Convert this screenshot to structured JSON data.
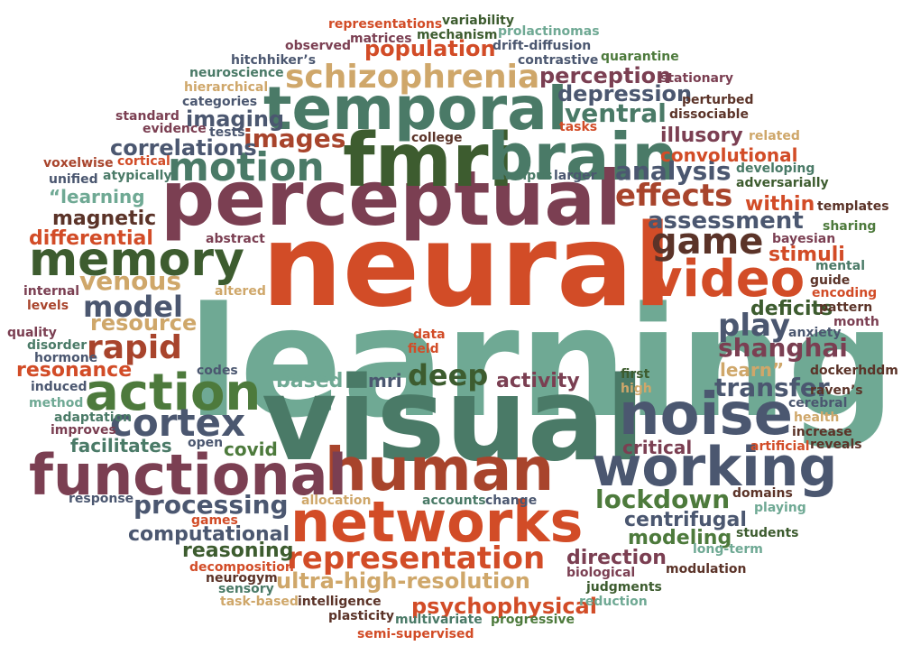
{
  "colors": {
    "teal_light": "#6fa994",
    "teal_dark": "#4a7a67",
    "orange": "#d24c27",
    "plum": "#7b3f52",
    "slate": "#4b5770",
    "olive": "#3d5c2f",
    "gold": "#cfa76a",
    "brown": "#5b3328",
    "green": "#4d7a3c",
    "rust": "#a8442c"
  },
  "words": [
    {
      "text": "learning",
      "color": "teal_light"
    },
    {
      "text": "neural",
      "color": "orange"
    },
    {
      "text": "visual",
      "color": "teal_dark"
    },
    {
      "text": "perceptual",
      "color": "plum"
    },
    {
      "text": "fmri",
      "color": "olive"
    },
    {
      "text": "brain",
      "color": "teal_dark"
    },
    {
      "text": "temporal",
      "color": "teal_dark"
    },
    {
      "text": "human",
      "color": "rust"
    },
    {
      "text": "networks",
      "color": "orange"
    },
    {
      "text": "functional",
      "color": "plum"
    },
    {
      "text": "noise",
      "color": "slate"
    },
    {
      "text": "memory",
      "color": "olive"
    },
    {
      "text": "action",
      "color": "green"
    },
    {
      "text": "working",
      "color": "slate"
    },
    {
      "text": "video",
      "color": "orange"
    },
    {
      "text": "motion",
      "color": "teal_dark"
    },
    {
      "text": "schizophrenia",
      "color": "gold"
    },
    {
      "text": "game",
      "color": "brown"
    },
    {
      "text": "cortex",
      "color": "slate"
    },
    {
      "text": "representation",
      "color": "orange"
    },
    {
      "text": "deep",
      "color": "olive"
    },
    {
      "text": "effects",
      "color": "rust"
    },
    {
      "text": "analysis",
      "color": "slate"
    },
    {
      "text": "rapid",
      "color": "rust"
    },
    {
      "text": "model",
      "color": "slate"
    },
    {
      "text": "ventral",
      "color": "teal_dark"
    },
    {
      "text": "play",
      "color": "slate"
    },
    {
      "text": "processing",
      "color": "slate"
    },
    {
      "text": "ultra-high-resolution",
      "color": "gold"
    },
    {
      "text": "images",
      "color": "rust"
    },
    {
      "text": "assessment",
      "color": "slate"
    },
    {
      "text": "shanghai",
      "color": "plum"
    },
    {
      "text": "transfer",
      "color": "slate"
    },
    {
      "text": "lockdown",
      "color": "green"
    },
    {
      "text": "population",
      "color": "orange"
    },
    {
      "text": "venous",
      "color": "gold"
    },
    {
      "text": "depression",
      "color": "slate"
    },
    {
      "text": "perception",
      "color": "plum"
    },
    {
      "text": "imaging",
      "color": "slate"
    },
    {
      "text": "resource",
      "color": "gold"
    },
    {
      "text": "correlations",
      "color": "slate"
    },
    {
      "text": "psychophysical",
      "color": "orange"
    },
    {
      "text": "computational",
      "color": "slate"
    },
    {
      "text": "reasoning",
      "color": "olive"
    },
    {
      "text": "direction",
      "color": "plum"
    },
    {
      "text": "modeling",
      "color": "green"
    },
    {
      "text": "centrifugal",
      "color": "slate"
    },
    {
      "text": "magnetic",
      "color": "brown"
    },
    {
      "text": "differential",
      "color": "orange"
    },
    {
      "text": "resonance",
      "color": "orange"
    },
    {
      "text": "facilitates",
      "color": "teal_dark"
    },
    {
      "text": "convolutional",
      "color": "orange"
    },
    {
      "text": "illusory",
      "color": "plum"
    },
    {
      "text": "deficits",
      "color": "olive"
    },
    {
      "text": "within",
      "color": "orange"
    },
    {
      "text": "stimuli",
      "color": "orange"
    },
    {
      "text": "based",
      "color": "teal_light"
    },
    {
      "text": "activity",
      "color": "plum"
    },
    {
      "text": "mri",
      "color": "slate"
    },
    {
      "text": "covid",
      "color": "green"
    },
    {
      "text": "critical",
      "color": "plum"
    },
    {
      "text": "“learning",
      "color": "teal_light"
    },
    {
      "text": "learn”",
      "color": "gold"
    },
    {
      "text": "representations",
      "color": "orange"
    },
    {
      "text": "variability",
      "color": "olive"
    },
    {
      "text": "prolactinomas",
      "color": "teal_light"
    },
    {
      "text": "matrices",
      "color": "plum"
    },
    {
      "text": "mechanism",
      "color": "olive"
    },
    {
      "text": "observed",
      "color": "plum"
    },
    {
      "text": "drift-diffusion",
      "color": "slate"
    },
    {
      "text": "hitchhiker’s",
      "color": "slate"
    },
    {
      "text": "contrastive",
      "color": "slate"
    },
    {
      "text": "quarantine",
      "color": "green"
    },
    {
      "text": "neuroscience",
      "color": "teal_dark"
    },
    {
      "text": "stationary",
      "color": "plum"
    },
    {
      "text": "hierarchical",
      "color": "gold"
    },
    {
      "text": "perturbed",
      "color": "brown"
    },
    {
      "text": "categories",
      "color": "slate"
    },
    {
      "text": "standard",
      "color": "plum"
    },
    {
      "text": "dissociable",
      "color": "brown"
    },
    {
      "text": "evidence",
      "color": "plum"
    },
    {
      "text": "tests",
      "color": "slate"
    },
    {
      "text": "tasks",
      "color": "orange"
    },
    {
      "text": "college",
      "color": "brown"
    },
    {
      "text": "related",
      "color": "gold"
    },
    {
      "text": "voxelwise",
      "color": "rust"
    },
    {
      "text": "cortical",
      "color": "orange"
    },
    {
      "text": "atypically",
      "color": "teal_dark"
    },
    {
      "text": "-campus",
      "color": "teal_dark"
    },
    {
      "text": "larger",
      "color": "slate"
    },
    {
      "text": "developing",
      "color": "teal_dark"
    },
    {
      "text": "unified",
      "color": "slate"
    },
    {
      "text": "adversarially",
      "color": "olive"
    },
    {
      "text": "templates",
      "color": "brown"
    },
    {
      "text": "sharing",
      "color": "green"
    },
    {
      "text": "bayesian",
      "color": "plum"
    },
    {
      "text": "abstract",
      "color": "plum"
    },
    {
      "text": "mental",
      "color": "teal_dark"
    },
    {
      "text": "guide",
      "color": "brown"
    },
    {
      "text": "encoding",
      "color": "orange"
    },
    {
      "text": "internal",
      "color": "plum"
    },
    {
      "text": "altered",
      "color": "gold"
    },
    {
      "text": "levels",
      "color": "rust"
    },
    {
      "text": "pattern",
      "color": "brown"
    },
    {
      "text": "month",
      "color": "plum"
    },
    {
      "text": "quality",
      "color": "plum"
    },
    {
      "text": "anxiety",
      "color": "slate"
    },
    {
      "text": "data",
      "color": "orange"
    },
    {
      "text": "field",
      "color": "orange"
    },
    {
      "text": "disorder",
      "color": "teal_dark"
    },
    {
      "text": "hormone",
      "color": "slate"
    },
    {
      "text": "dockerhddm",
      "color": "brown"
    },
    {
      "text": "codes",
      "color": "slate"
    },
    {
      "text": "first",
      "color": "olive"
    },
    {
      "text": "induced",
      "color": "slate"
    },
    {
      "text": "raven’s",
      "color": "brown"
    },
    {
      "text": "high",
      "color": "gold"
    },
    {
      "text": "method",
      "color": "teal_light"
    },
    {
      "text": "cerebral",
      "color": "slate"
    },
    {
      "text": "adaptation",
      "color": "teal_dark"
    },
    {
      "text": "health",
      "color": "gold"
    },
    {
      "text": "improves",
      "color": "plum"
    },
    {
      "text": "increase",
      "color": "brown"
    },
    {
      "text": "open",
      "color": "slate"
    },
    {
      "text": "artificial",
      "color": "orange"
    },
    {
      "text": "reveals",
      "color": "brown"
    },
    {
      "text": "response",
      "color": "slate"
    },
    {
      "text": "allocation",
      "color": "gold"
    },
    {
      "text": "accounts",
      "color": "teal_dark"
    },
    {
      "text": "change",
      "color": "slate"
    },
    {
      "text": "domains",
      "color": "brown"
    },
    {
      "text": "playing",
      "color": "teal_light"
    },
    {
      "text": "games",
      "color": "orange"
    },
    {
      "text": "students",
      "color": "olive"
    },
    {
      "text": "long-term",
      "color": "teal_light"
    },
    {
      "text": "decomposition",
      "color": "orange"
    },
    {
      "text": "biological",
      "color": "plum"
    },
    {
      "text": "modulation",
      "color": "brown"
    },
    {
      "text": "neurogym",
      "color": "brown"
    },
    {
      "text": "judgments",
      "color": "olive"
    },
    {
      "text": "sensory",
      "color": "teal_dark"
    },
    {
      "text": "task-based",
      "color": "gold"
    },
    {
      "text": "intelligence",
      "color": "brown"
    },
    {
      "text": "reduction",
      "color": "teal_light"
    },
    {
      "text": "plasticity",
      "color": "brown"
    },
    {
      "text": "multivariate",
      "color": "teal_dark"
    },
    {
      "text": "progressive",
      "color": "green"
    },
    {
      "text": "semi-supervised",
      "color": "orange"
    }
  ]
}
